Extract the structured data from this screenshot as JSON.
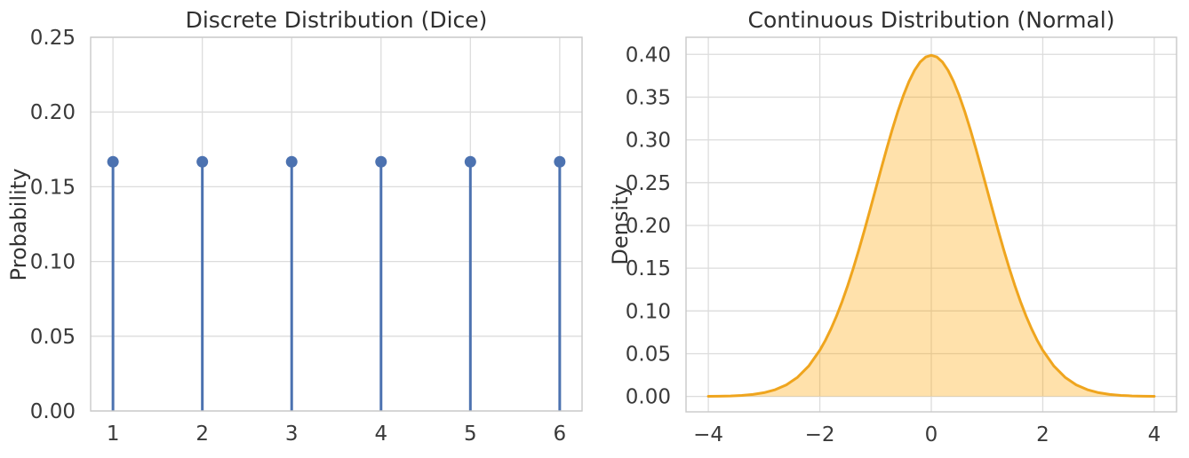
{
  "style": {
    "background": "#ffffff",
    "grid_color": "#dcdcdc",
    "spine_color": "#c9c9c9",
    "text_color": "#333333",
    "title_color": "#2f2f2f"
  },
  "chart_data": [
    {
      "type": "stem",
      "title": "Discrete Distribution (Dice)",
      "xlabel": "",
      "ylabel": "Probability",
      "x": [
        1,
        2,
        3,
        4,
        5,
        6
      ],
      "values": [
        0.1667,
        0.1667,
        0.1667,
        0.1667,
        0.1667,
        0.1667
      ],
      "xlim": [
        0.75,
        6.25
      ],
      "ylim": [
        0,
        0.25
      ],
      "xticks": {
        "values": [
          1,
          2,
          3,
          4,
          5,
          6
        ],
        "labels": [
          "1",
          "2",
          "3",
          "4",
          "5",
          "6"
        ]
      },
      "yticks": {
        "values": [
          0.0,
          0.05,
          0.1,
          0.15,
          0.2,
          0.25
        ],
        "labels": [
          "0.00",
          "0.05",
          "0.10",
          "0.15",
          "0.20",
          "0.25"
        ]
      },
      "grid": true,
      "legend": null,
      "stem_color": "#4C72B0",
      "marker": "circle"
    },
    {
      "type": "area",
      "title": "Continuous Distribution (Normal)",
      "xlabel": "",
      "ylabel": "Density",
      "distribution": {
        "name": "normal",
        "mean": 0,
        "std": 1
      },
      "x": [
        -4.0,
        -3.8,
        -3.6,
        -3.4,
        -3.2,
        -3.0,
        -2.8,
        -2.6,
        -2.4,
        -2.2,
        -2.0,
        -1.9,
        -1.8,
        -1.7,
        -1.6,
        -1.5,
        -1.4,
        -1.3,
        -1.2,
        -1.1,
        -1.0,
        -0.9,
        -0.8,
        -0.7,
        -0.6,
        -0.5,
        -0.4,
        -0.3,
        -0.2,
        -0.1,
        0.0,
        0.1,
        0.2,
        0.3,
        0.4,
        0.5,
        0.6,
        0.7,
        0.8,
        0.9,
        1.0,
        1.1,
        1.2,
        1.3,
        1.4,
        1.5,
        1.6,
        1.7,
        1.8,
        1.9,
        2.0,
        2.2,
        2.4,
        2.6,
        2.8,
        3.0,
        3.2,
        3.4,
        3.6,
        3.8,
        4.0
      ],
      "y": [
        0.00013,
        0.00029,
        0.00061,
        0.00123,
        0.00238,
        0.00443,
        0.00792,
        0.01358,
        0.02239,
        0.03547,
        0.05399,
        0.06562,
        0.07895,
        0.09405,
        0.11092,
        0.12952,
        0.14973,
        0.17137,
        0.19419,
        0.21785,
        0.24197,
        0.26609,
        0.28969,
        0.31225,
        0.33322,
        0.35207,
        0.36827,
        0.38139,
        0.39104,
        0.39695,
        0.39894,
        0.39695,
        0.39104,
        0.38139,
        0.36827,
        0.35207,
        0.33322,
        0.31225,
        0.28969,
        0.26609,
        0.24197,
        0.21785,
        0.19419,
        0.17137,
        0.14973,
        0.12952,
        0.11092,
        0.09405,
        0.07895,
        0.06562,
        0.05399,
        0.03547,
        0.02239,
        0.01358,
        0.00792,
        0.00443,
        0.00238,
        0.00123,
        0.00061,
        0.00029,
        0.00013
      ],
      "xlim": [
        -4.4,
        4.4
      ],
      "ylim": [
        -0.018,
        0.42
      ],
      "xticks": {
        "values": [
          -4,
          -2,
          0,
          2,
          4
        ],
        "labels": [
          "−4",
          "−2",
          "0",
          "2",
          "4"
        ]
      },
      "yticks": {
        "values": [
          0.0,
          0.05,
          0.1,
          0.15,
          0.2,
          0.25,
          0.3,
          0.35,
          0.4
        ],
        "labels": [
          "0.00",
          "0.05",
          "0.10",
          "0.15",
          "0.20",
          "0.25",
          "0.30",
          "0.35",
          "0.40"
        ]
      },
      "grid": true,
      "legend": null,
      "line_color": "#EFA51E",
      "fill_color": "#FFA500",
      "fill_opacity": 0.33
    }
  ]
}
